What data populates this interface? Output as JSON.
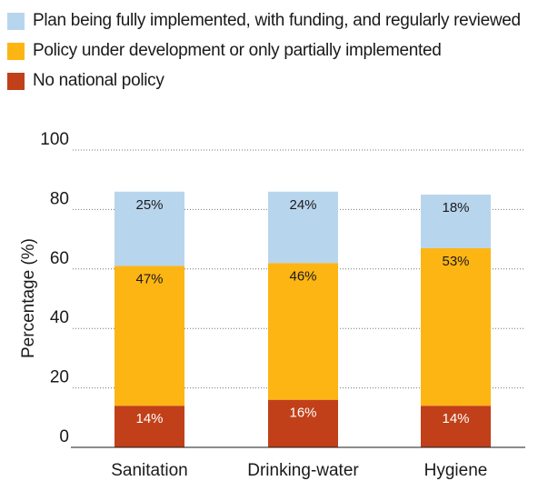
{
  "chart_data": {
    "type": "bar",
    "stacked": true,
    "categories": [
      "Sanitation",
      "Drinking-water",
      "Hygiene"
    ],
    "series": [
      {
        "name": "No national policy",
        "values": [
          14,
          16,
          14
        ],
        "labels": [
          "14%",
          "16%",
          "14%"
        ],
        "color": "#c1401a"
      },
      {
        "name": "Policy under development or only partially implemented",
        "values": [
          47,
          46,
          53
        ],
        "labels": [
          "47%",
          "46%",
          "53%"
        ],
        "color": "#fdb514"
      },
      {
        "name": "Plan being fully implemented, with funding, and regularly reviewed",
        "values": [
          25,
          24,
          18
        ],
        "labels": [
          "25%",
          "24%",
          "18%"
        ],
        "color": "#b8d5ee"
      }
    ],
    "legend_order": [
      2,
      1,
      0
    ],
    "ylabel": "Percentage (%)",
    "ylim": [
      0,
      100
    ],
    "yticks": [
      "0",
      "20",
      "40",
      "60",
      "80",
      "100"
    ],
    "grid": "dotted horizontal",
    "legend_position": "top-left"
  }
}
